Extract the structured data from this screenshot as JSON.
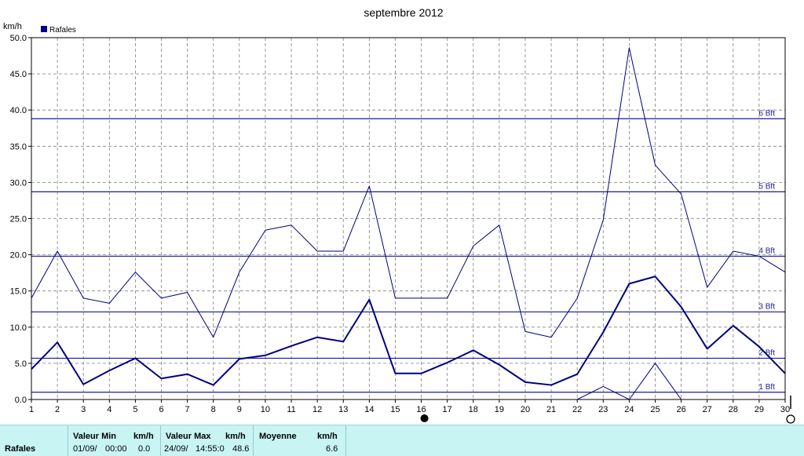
{
  "colors": {
    "series": "#000080",
    "threshold": "#1a1aa0",
    "grid": "#808080",
    "footer_bg": "#c8f4f4"
  },
  "chart_data": {
    "type": "line",
    "title": "septembre 2012",
    "ylabel": "km/h",
    "xlabel": "",
    "ylim": [
      0,
      50
    ],
    "yticks": [
      "0.0",
      "5.0",
      "10.0",
      "15.0",
      "20.0",
      "25.0",
      "30.0",
      "35.0",
      "40.0",
      "45.0",
      "50.0"
    ],
    "x": [
      1,
      2,
      3,
      4,
      5,
      6,
      7,
      8,
      9,
      10,
      11,
      12,
      13,
      14,
      15,
      16,
      17,
      18,
      19,
      20,
      21,
      22,
      23,
      24,
      25,
      26,
      27,
      28,
      29,
      30
    ],
    "grid": true,
    "legend": {
      "position": "top-left",
      "entries": [
        "Rafales"
      ]
    },
    "series": [
      {
        "name": "Rafales",
        "role": "max",
        "width": 1,
        "values": [
          14.0,
          20.5,
          14.0,
          13.3,
          17.6,
          14.0,
          14.8,
          8.6,
          17.6,
          23.4,
          24.1,
          20.5,
          20.5,
          29.5,
          14.0,
          14.0,
          14.0,
          21.2,
          24.1,
          9.4,
          8.6,
          14.0,
          24.8,
          48.6,
          32.4,
          28.4,
          15.5,
          20.5,
          19.8,
          17.6
        ]
      },
      {
        "role": "average",
        "width": 2,
        "values": [
          4.2,
          7.9,
          2.1,
          4.0,
          5.7,
          2.9,
          3.5,
          2.0,
          5.6,
          6.1,
          7.4,
          8.6,
          8.0,
          13.8,
          3.6,
          3.6,
          5.1,
          6.8,
          4.8,
          2.4,
          2.0,
          3.5,
          9.3,
          16.0,
          17.0,
          12.8,
          7.0,
          10.2,
          7.3,
          3.6
        ]
      },
      {
        "role": "min",
        "width": 1,
        "values": [
          0,
          0,
          0,
          0,
          0,
          0,
          0,
          0,
          0,
          0,
          0,
          0,
          0,
          0,
          0,
          0,
          0,
          0,
          0,
          0,
          0,
          0,
          1.8,
          0,
          5.0,
          0,
          0,
          0,
          0,
          0
        ]
      }
    ],
    "thresholds": [
      {
        "label": "1 Bft",
        "value": 1.0
      },
      {
        "label": "2 Bft",
        "value": 5.7
      },
      {
        "label": "3 Bft",
        "value": 12.1
      },
      {
        "label": "4 Bft",
        "value": 19.8
      },
      {
        "label": "5 Bft",
        "value": 28.7
      },
      {
        "label": "6 Bft",
        "value": 38.8
      }
    ],
    "markers": [
      {
        "x": 16,
        "symbol": "full-moon"
      },
      {
        "x": 30,
        "symbol": "new-moon"
      }
    ]
  },
  "footer": {
    "row_label": "Rafales",
    "min": {
      "header": "Valeur Min",
      "unit": "km/h",
      "date": "01/09/",
      "time": "00:00",
      "value": "0.0"
    },
    "max": {
      "header": "Valeur Max",
      "unit": "km/h",
      "date": "24/09/",
      "time": "14:55:0",
      "value": "48.6"
    },
    "avg": {
      "header": "Moyenne",
      "unit": "km/h",
      "value": "6.6"
    }
  }
}
